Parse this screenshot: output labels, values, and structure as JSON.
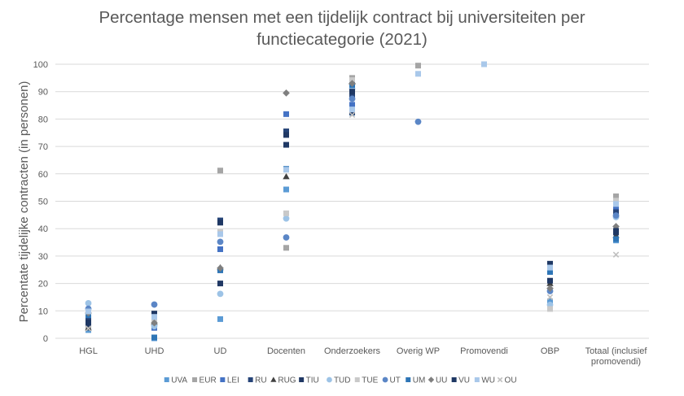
{
  "chart_data": {
    "type": "scatter",
    "title_lines": [
      "Percentage mensen met een tijdelijk contract bij universiteiten per",
      "functiecategorie (2021)"
    ],
    "ylabel": "Percentate tijdelijke contracten (in personen)",
    "xlabel": "",
    "ylim": [
      0,
      100
    ],
    "yticks": [
      0,
      10,
      20,
      30,
      40,
      50,
      60,
      70,
      80,
      90,
      100
    ],
    "grid": true,
    "legend_position": "bottom",
    "categories": [
      [
        "HGL"
      ],
      [
        "UHD"
      ],
      [
        "UD"
      ],
      [
        "Docenten"
      ],
      [
        "Onderzoekers"
      ],
      [
        "Overig WP"
      ],
      [
        "Promovendi"
      ],
      [
        "OBP"
      ],
      [
        "Totaal (inclusief",
        "promovendi)"
      ]
    ],
    "series": [
      {
        "name": "UVA",
        "marker": "square",
        "color": "#5b9bd5",
        "values": [
          3,
          0,
          7,
          54.3,
          82.3,
          null,
          null,
          13.5,
          35.7
        ]
      },
      {
        "name": "EUR",
        "marker": "square",
        "color": "#a5a5a5",
        "values": [
          4.5,
          5.2,
          61.2,
          33,
          95,
          99.5,
          100,
          11.5,
          51.8
        ]
      },
      {
        "name": "LEI",
        "marker": "square",
        "color": "#4472c4",
        "values": [
          6.5,
          3.8,
          32.5,
          81.8,
          85.2,
          null,
          null,
          26.5,
          47.6
        ]
      },
      {
        "name": "RU",
        "marker": "square",
        "color": "#264478",
        "values": [
          7.2,
          8.8,
          43,
          75.5,
          88.2,
          null,
          null,
          25.5,
          46
        ]
      },
      {
        "name": "RUG",
        "marker": "triangle",
        "color": "#404040",
        "values": [
          3.8,
          5.8,
          25.8,
          59,
          93.5,
          null,
          null,
          20,
          37.5
        ]
      },
      {
        "name": "TIU",
        "marker": "square",
        "color": "#203864",
        "values": [
          5.2,
          7.5,
          20,
          74.2,
          82.5,
          null,
          null,
          21,
          38.6
        ]
      },
      {
        "name": "TUD",
        "marker": "circle",
        "color": "#9dc3e6",
        "values": [
          12.8,
          4.4,
          16.2,
          43.7,
          91,
          null,
          null,
          12.2,
          44.2
        ]
      },
      {
        "name": "TUE",
        "marker": "square",
        "color": "#c9c9c9",
        "values": [
          10.2,
          6.5,
          38.8,
          45.6,
          94.2,
          null,
          null,
          10.7,
          50.2
        ]
      },
      {
        "name": "UT",
        "marker": "circle",
        "color": "#5b86c6",
        "values": [
          10.8,
          12.3,
          35.2,
          36.8,
          87.4,
          79,
          null,
          17.2,
          44.8
        ]
      },
      {
        "name": "UM",
        "marker": "square",
        "color": "#2e75b6",
        "values": [
          8.4,
          0.3,
          24.8,
          61.8,
          92.4,
          null,
          null,
          24.2,
          36.2
        ]
      },
      {
        "name": "UU",
        "marker": "diamond",
        "color": "#7f7f7f",
        "values": [
          9.2,
          5.6,
          25.6,
          89.5,
          93,
          null,
          null,
          18.2,
          40.8
        ]
      },
      {
        "name": "VU",
        "marker": "square",
        "color": "#1f3864",
        "values": [
          5.8,
          9,
          42.2,
          70.6,
          90,
          null,
          null,
          27.2,
          39.2
        ]
      },
      {
        "name": "WU",
        "marker": "square",
        "color": "#a9c8ea",
        "values": [
          9.8,
          7.8,
          38,
          61.5,
          83.5,
          96.5,
          100,
          25.8,
          49
        ]
      },
      {
        "name": "OU",
        "marker": "x",
        "color": "#bfbfbf",
        "values": [
          3.6,
          null,
          null,
          null,
          81.5,
          null,
          null,
          15,
          30.5
        ]
      }
    ]
  }
}
